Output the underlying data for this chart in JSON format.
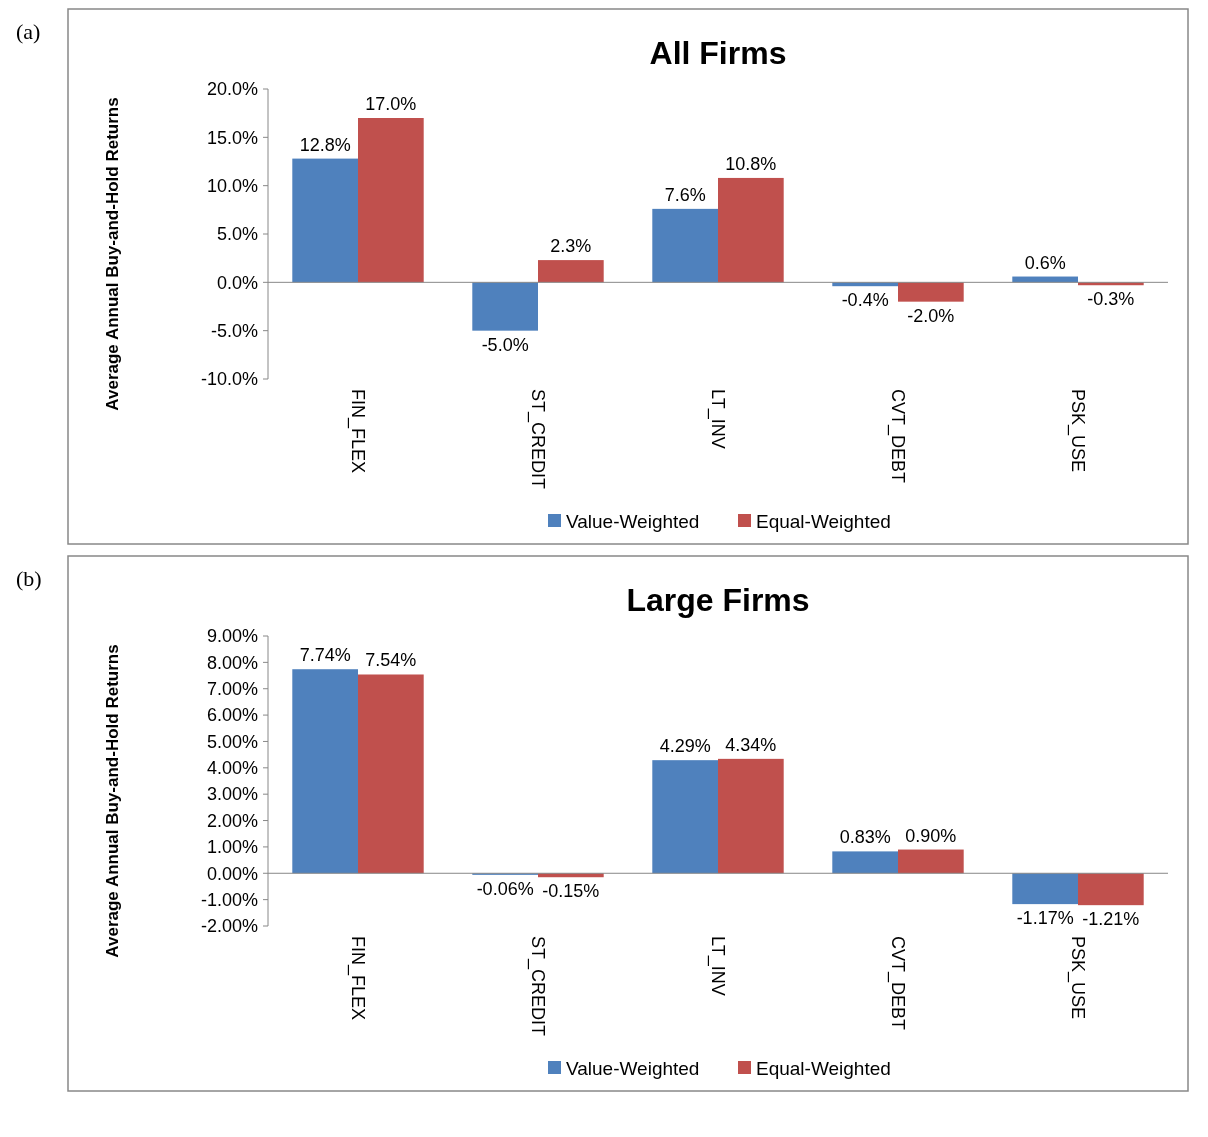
{
  "chart_data": [
    {
      "type": "bar",
      "title": "All Firms",
      "ylabel": "Average Annual Buy-and-Hold Returns",
      "annotations": [
        "(a)"
      ],
      "categories": [
        "FIN_FLEX",
        "ST_CREDIT",
        "LT_INV",
        "CVT_DEBT",
        "PSK_USE"
      ],
      "series": [
        {
          "name": "Value-Weighted",
          "color": "#4f81bd",
          "values": [
            12.8,
            -5.0,
            7.6,
            -0.4,
            0.6
          ],
          "value_labels": [
            "12.8%",
            "-5.0%",
            "7.6%",
            "-0.4%",
            "0.6%"
          ]
        },
        {
          "name": "Equal-Weighted",
          "color": "#c0504d",
          "values": [
            17.0,
            2.3,
            10.8,
            -2.0,
            -0.3
          ],
          "value_labels": [
            "17.0%",
            "2.3%",
            "10.8%",
            "-2.0%",
            "-0.3%"
          ]
        }
      ],
      "ylim": [
        -10,
        20
      ],
      "yticks": [
        {
          "value": -10,
          "label": "-10.0%"
        },
        {
          "value": -5,
          "label": "-5.0%"
        },
        {
          "value": 0,
          "label": "0.0%"
        },
        {
          "value": 5,
          "label": "5.0%"
        },
        {
          "value": 10,
          "label": "10.0%"
        },
        {
          "value": 15,
          "label": "15.0%"
        },
        {
          "value": 20,
          "label": "20.0%"
        }
      ],
      "legend": "bottom"
    },
    {
      "type": "bar",
      "title": "Large Firms",
      "ylabel": "Average Annual Buy-and-Hold Returns",
      "annotations": [
        "(b)"
      ],
      "categories": [
        "FIN_FLEX",
        "ST_CREDIT",
        "LT_INV",
        "CVT_DEBT",
        "PSK_USE"
      ],
      "series": [
        {
          "name": "Value-Weighted",
          "color": "#4f81bd",
          "values": [
            7.74,
            -0.06,
            4.29,
            0.83,
            -1.17
          ],
          "value_labels": [
            "7.74%",
            "-0.06%",
            "4.29%",
            "0.83%",
            "-1.17%"
          ]
        },
        {
          "name": "Equal-Weighted",
          "color": "#c0504d",
          "values": [
            7.54,
            -0.15,
            4.34,
            0.9,
            -1.21
          ],
          "value_labels": [
            "7.54%",
            "-0.15%",
            "4.34%",
            "0.90%",
            "-1.21%"
          ]
        }
      ],
      "ylim": [
        -2,
        9
      ],
      "yticks": [
        {
          "value": -2,
          "label": "-2.00%"
        },
        {
          "value": -1,
          "label": "-1.00%"
        },
        {
          "value": 0,
          "label": "0.00%"
        },
        {
          "value": 1,
          "label": "1.00%"
        },
        {
          "value": 2,
          "label": "2.00%"
        },
        {
          "value": 3,
          "label": "3.00%"
        },
        {
          "value": 4,
          "label": "4.00%"
        },
        {
          "value": 5,
          "label": "5.00%"
        },
        {
          "value": 6,
          "label": "6.00%"
        },
        {
          "value": 7,
          "label": "7.00%"
        },
        {
          "value": 8,
          "label": "8.00%"
        },
        {
          "value": 9,
          "label": "9.00%"
        }
      ],
      "legend": "bottom"
    }
  ]
}
